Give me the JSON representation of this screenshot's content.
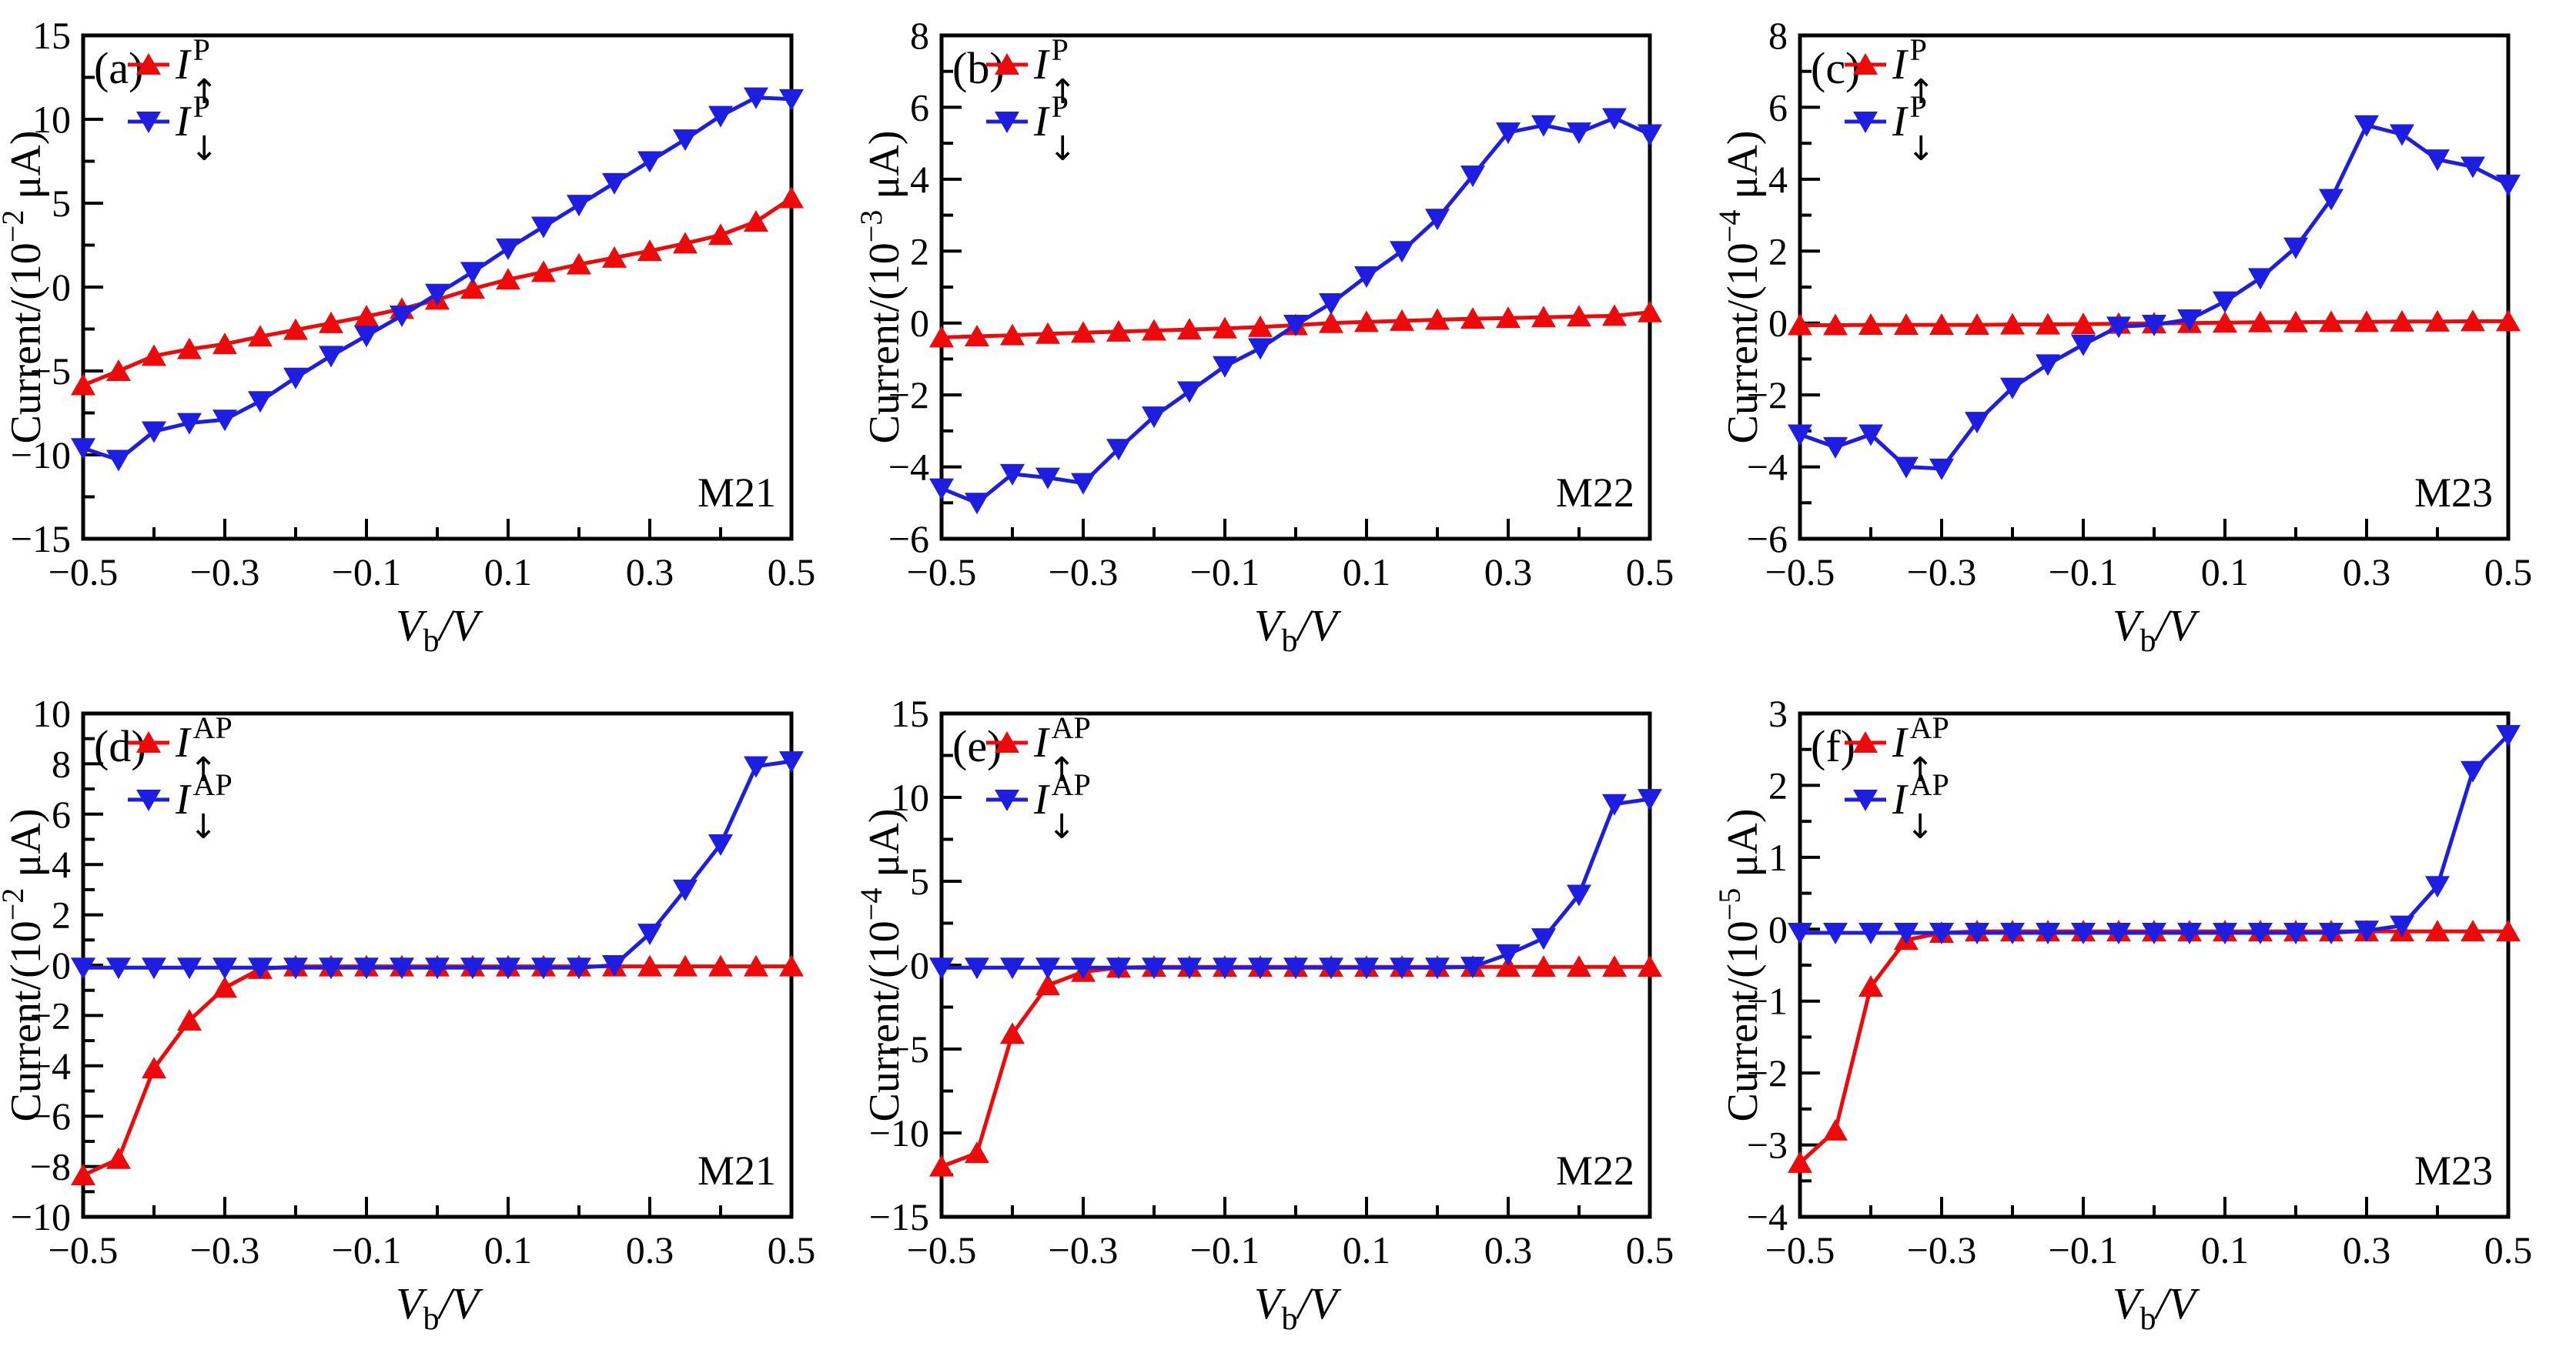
{
  "figure": {
    "colors": {
      "spin_up": "#ee0a0a",
      "spin_down": "#1e1ee0",
      "axis": "#000000"
    },
    "x_axis_label": {
      "symbol": "V",
      "sub": "b",
      "suffix": "/V"
    },
    "x_ticks": [
      -0.5,
      -0.3,
      -0.1,
      0.1,
      0.3,
      0.5
    ],
    "x_minor_ticks": [
      -0.4,
      -0.2,
      0.0,
      0.2,
      0.4
    ]
  },
  "chart_data": {
    "type": "line",
    "xlim": [
      -0.5,
      0.5
    ],
    "x": [
      -0.5,
      -0.45,
      -0.4,
      -0.35,
      -0.3,
      -0.25,
      -0.2,
      -0.15,
      -0.1,
      -0.05,
      0.0,
      0.05,
      0.1,
      0.15,
      0.2,
      0.25,
      0.3,
      0.35,
      0.4,
      0.45,
      0.5
    ],
    "panels": [
      {
        "id": "a",
        "tag": "(a)",
        "device": "M21",
        "y_label": {
          "prefix": "Current/(10",
          "exponent": "−2",
          "unit": " μA)"
        },
        "ylim": [
          -15,
          15
        ],
        "y_ticks": [
          -15,
          -10,
          -5,
          0,
          5,
          10,
          15
        ],
        "y_minor_step": 2.5,
        "series": [
          {
            "name": "I-up-P",
            "legend": {
              "base": "I",
              "sup": "P",
              "sub": "↑"
            },
            "color_key": "spin_up",
            "marker": "triangle-up",
            "values": [
              -5.85,
              -5.0,
              -4.1,
              -3.7,
              -3.4,
              -2.95,
              -2.55,
              -2.15,
              -1.75,
              -1.3,
              -0.75,
              -0.1,
              0.45,
              0.9,
              1.35,
              1.75,
              2.15,
              2.6,
              3.1,
              3.9,
              5.3
            ]
          },
          {
            "name": "I-down-P",
            "legend": {
              "base": "I",
              "sup": "P",
              "sub": "↓"
            },
            "color_key": "spin_down",
            "marker": "triangle-down",
            "values": [
              -9.6,
              -10.3,
              -8.6,
              -8.1,
              -7.9,
              -6.8,
              -5.4,
              -4.1,
              -2.9,
              -1.7,
              -0.4,
              0.9,
              2.3,
              3.6,
              4.9,
              6.2,
              7.5,
              8.8,
              10.2,
              11.3,
              11.2
            ]
          }
        ]
      },
      {
        "id": "b",
        "tag": "(b)",
        "device": "M22",
        "y_label": {
          "prefix": "Current/(10",
          "exponent": "−3",
          "unit": " μA)"
        },
        "ylim": [
          -6,
          8
        ],
        "y_ticks": [
          -6,
          -4,
          -2,
          0,
          2,
          4,
          6,
          8
        ],
        "y_minor_step": 1,
        "series": [
          {
            "name": "I-up-P",
            "legend": {
              "base": "I",
              "sup": "P",
              "sub": "↑"
            },
            "color_key": "spin_up",
            "marker": "triangle-up",
            "values": [
              -0.4,
              -0.37,
              -0.34,
              -0.3,
              -0.27,
              -0.24,
              -0.21,
              -0.18,
              -0.15,
              -0.11,
              -0.06,
              0.0,
              0.03,
              0.06,
              0.09,
              0.12,
              0.14,
              0.16,
              0.18,
              0.2,
              0.3
            ]
          },
          {
            "name": "I-down-P",
            "legend": {
              "base": "I",
              "sup": "P",
              "sub": "↓"
            },
            "color_key": "spin_down",
            "marker": "triangle-down",
            "values": [
              -4.6,
              -5.0,
              -4.2,
              -4.3,
              -4.45,
              -3.5,
              -2.6,
              -1.9,
              -1.2,
              -0.7,
              -0.05,
              0.55,
              1.3,
              2.0,
              2.9,
              4.1,
              5.3,
              5.5,
              5.3,
              5.7,
              5.25
            ]
          }
        ]
      },
      {
        "id": "c",
        "tag": "(c)",
        "device": "M23",
        "y_label": {
          "prefix": "Current/(10",
          "exponent": "−4",
          "unit": " μA)"
        },
        "ylim": [
          -6,
          8
        ],
        "y_ticks": [
          -6,
          -4,
          -2,
          0,
          2,
          4,
          6,
          8
        ],
        "y_minor_step": 1,
        "series": [
          {
            "name": "I-up-P",
            "legend": {
              "base": "I",
              "sup": "P",
              "sub": "↑"
            },
            "color_key": "spin_up",
            "marker": "triangle-up",
            "values": [
              -0.06,
              -0.06,
              -0.05,
              -0.05,
              -0.05,
              -0.05,
              -0.04,
              -0.04,
              -0.03,
              -0.02,
              -0.01,
              0.0,
              0.01,
              0.02,
              0.02,
              0.03,
              0.03,
              0.04,
              0.04,
              0.05,
              0.05
            ]
          },
          {
            "name": "I-down-P",
            "legend": {
              "base": "I",
              "sup": "P",
              "sub": "↓"
            },
            "color_key": "spin_down",
            "marker": "triangle-down",
            "values": [
              -3.1,
              -3.45,
              -3.1,
              -4.0,
              -4.05,
              -2.75,
              -1.8,
              -1.15,
              -0.6,
              -0.1,
              -0.05,
              0.1,
              0.6,
              1.25,
              2.1,
              3.45,
              5.5,
              5.25,
              4.55,
              4.35,
              3.85
            ]
          }
        ]
      },
      {
        "id": "d",
        "tag": "(d)",
        "device": "M21",
        "y_label": {
          "prefix": "Current/(10",
          "exponent": "−2",
          "unit": " μA)"
        },
        "ylim": [
          -10,
          10
        ],
        "y_ticks": [
          -10,
          -8,
          -6,
          -4,
          -2,
          0,
          2,
          4,
          6,
          8,
          10
        ],
        "y_minor_step": 1,
        "series": [
          {
            "name": "I-up-AP",
            "legend": {
              "base": "I",
              "sup": "AP",
              "sub": "↑"
            },
            "color_key": "spin_up",
            "marker": "triangle-up",
            "values": [
              -8.35,
              -7.7,
              -4.1,
              -2.2,
              -0.9,
              -0.15,
              -0.05,
              -0.05,
              -0.05,
              -0.05,
              -0.05,
              -0.05,
              -0.05,
              -0.05,
              -0.05,
              -0.05,
              -0.05,
              -0.05,
              -0.05,
              -0.05,
              -0.05
            ]
          },
          {
            "name": "I-down-AP",
            "legend": {
              "base": "I",
              "sup": "AP",
              "sub": "↓"
            },
            "color_key": "spin_down",
            "marker": "triangle-down",
            "values": [
              -0.1,
              -0.1,
              -0.1,
              -0.1,
              -0.1,
              -0.1,
              -0.1,
              -0.1,
              -0.1,
              -0.1,
              -0.1,
              -0.1,
              -0.1,
              -0.1,
              -0.1,
              0.0,
              1.25,
              3.0,
              4.8,
              7.9,
              8.1
            ]
          }
        ]
      },
      {
        "id": "e",
        "tag": "(e)",
        "device": "M22",
        "y_label": {
          "prefix": "Current/(10",
          "exponent": "−4",
          "unit": " μA)"
        },
        "ylim": [
          -15,
          15
        ],
        "y_ticks": [
          -15,
          -10,
          -5,
          0,
          5,
          10,
          15
        ],
        "y_minor_step": 2.5,
        "series": [
          {
            "name": "I-up-AP",
            "legend": {
              "base": "I",
              "sup": "AP",
              "sub": "↑"
            },
            "color_key": "spin_up",
            "marker": "triangle-up",
            "values": [
              -12.0,
              -11.2,
              -4.1,
              -1.2,
              -0.4,
              -0.15,
              -0.1,
              -0.1,
              -0.1,
              -0.1,
              -0.1,
              -0.1,
              -0.1,
              -0.1,
              -0.1,
              -0.1,
              -0.1,
              -0.1,
              -0.1,
              -0.1,
              -0.1
            ]
          },
          {
            "name": "I-down-AP",
            "legend": {
              "base": "I",
              "sup": "AP",
              "sub": "↓"
            },
            "color_key": "spin_down",
            "marker": "triangle-down",
            "values": [
              -0.15,
              -0.15,
              -0.15,
              -0.15,
              -0.15,
              -0.15,
              -0.15,
              -0.15,
              -0.15,
              -0.15,
              -0.15,
              -0.15,
              -0.15,
              -0.15,
              -0.15,
              -0.1,
              0.65,
              1.6,
              4.2,
              9.6,
              9.9
            ]
          }
        ]
      },
      {
        "id": "f",
        "tag": "(f)",
        "device": "M23",
        "y_label": {
          "prefix": "Current/(10",
          "exponent": "−5",
          "unit": " μA)"
        },
        "ylim": [
          -4,
          3
        ],
        "y_ticks": [
          -4,
          -3,
          -2,
          -1,
          0,
          1,
          2,
          3
        ],
        "y_minor_step": 0.5,
        "series": [
          {
            "name": "I-up-AP",
            "legend": {
              "base": "I",
              "sup": "AP",
              "sub": "↑"
            },
            "color_key": "spin_up",
            "marker": "triangle-up",
            "values": [
              -3.25,
              -2.8,
              -0.8,
              -0.15,
              -0.05,
              -0.03,
              -0.03,
              -0.03,
              -0.03,
              -0.03,
              -0.03,
              -0.03,
              -0.03,
              -0.03,
              -0.03,
              -0.03,
              -0.03,
              -0.03,
              -0.03,
              -0.03,
              -0.03
            ]
          },
          {
            "name": "I-down-AP",
            "legend": {
              "base": "I",
              "sup": "AP",
              "sub": "↓"
            },
            "color_key": "spin_down",
            "marker": "triangle-down",
            "values": [
              -0.05,
              -0.05,
              -0.05,
              -0.05,
              -0.05,
              -0.05,
              -0.05,
              -0.05,
              -0.05,
              -0.05,
              -0.05,
              -0.05,
              -0.05,
              -0.05,
              -0.05,
              -0.05,
              -0.02,
              0.05,
              0.6,
              2.2,
              2.7
            ]
          }
        ]
      }
    ]
  }
}
